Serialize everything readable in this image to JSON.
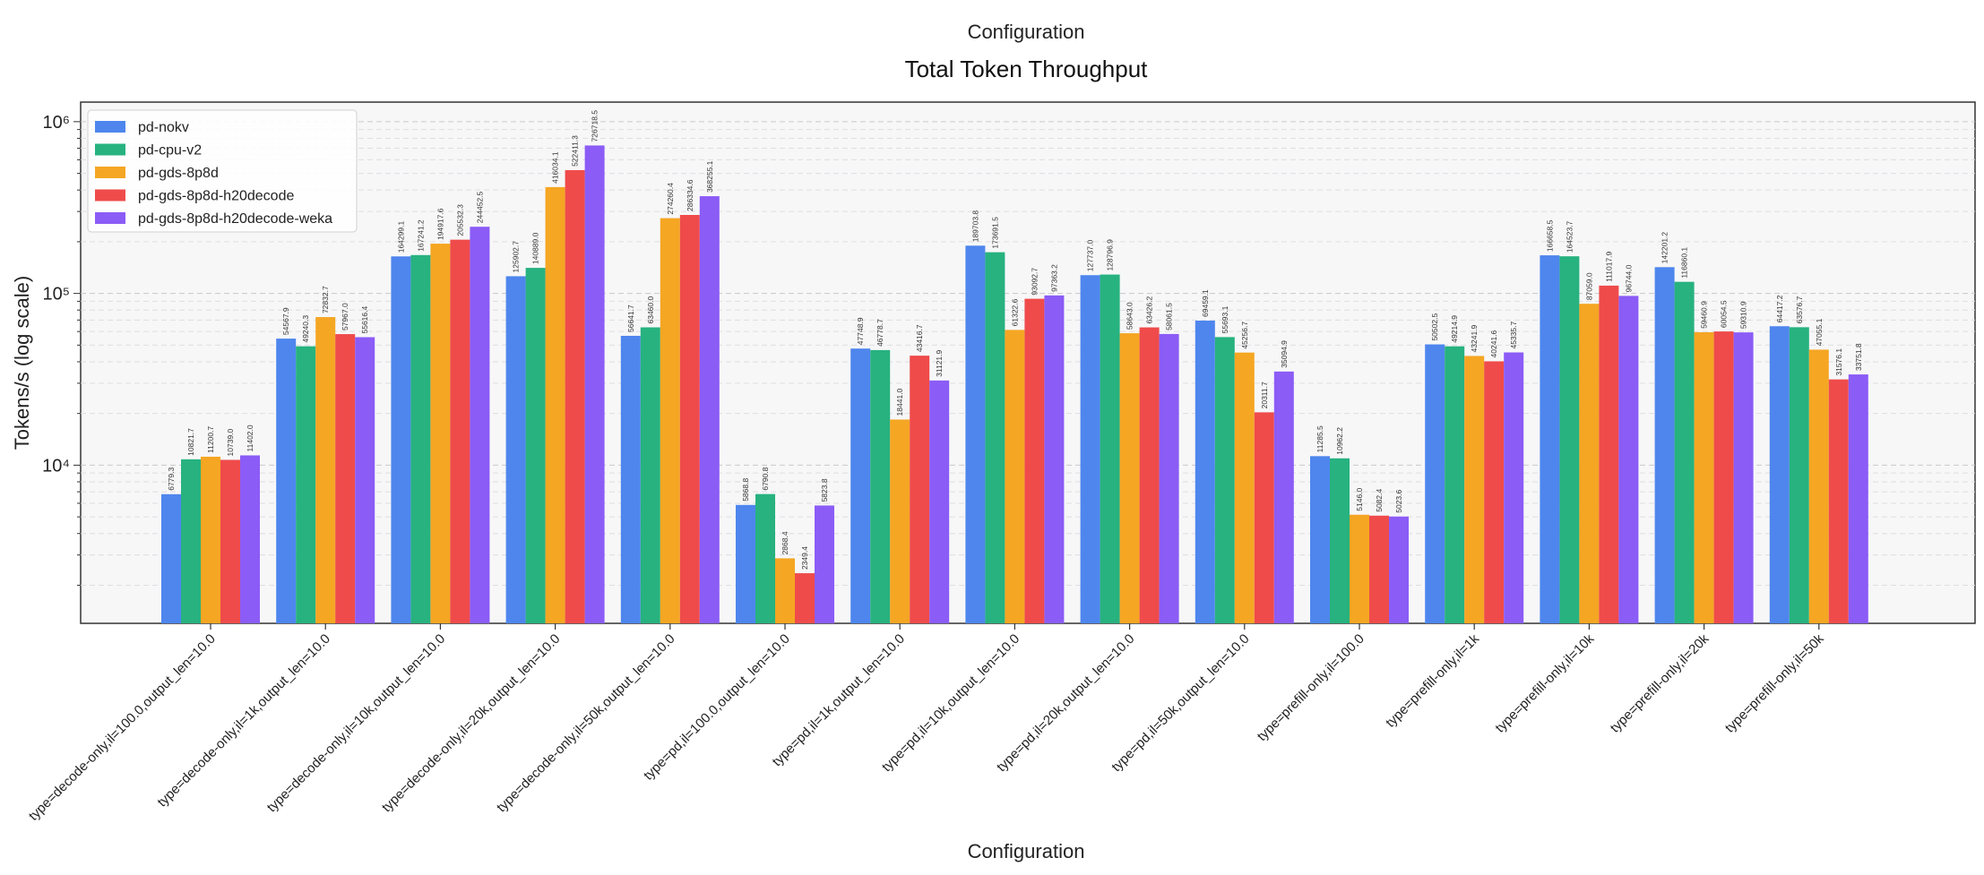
{
  "page": {
    "top_label": "Configuration"
  },
  "chart_data": {
    "type": "bar",
    "title": "Total Token Throughput",
    "xlabel": "Configuration",
    "ylabel": "Tokens/s (log scale)",
    "yscale": "log",
    "ylim": [
      1200,
      1300000
    ],
    "yticks": [
      {
        "value": 10000,
        "label": "10⁴"
      },
      {
        "value": 100000,
        "label": "10⁵"
      },
      {
        "value": 1000000,
        "label": "10⁶"
      }
    ],
    "grid": "horizontal dashed",
    "legend_position": "top-left",
    "categories": [
      "type=decode-only,il=100.0,output_len=10.0",
      "type=decode-only,il=1k,output_len=10.0",
      "type=decode-only,il=10k,output_len=10.0",
      "type=decode-only,il=20k,output_len=10.0",
      "type=decode-only,il=50k,output_len=10.0",
      "type=pd,il=100.0,output_len=10.0",
      "type=pd,il=1k,output_len=10.0",
      "type=pd,il=10k,output_len=10.0",
      "type=pd,il=20k,output_len=10.0",
      "type=pd,il=50k,output_len=10.0",
      "type=prefill-only,il=100.0",
      "type=prefill-only,il=1k",
      "type=prefill-only,il=10k",
      "type=prefill-only,il=20k",
      "type=prefill-only,il=50k"
    ],
    "series": [
      {
        "name": "pd-nokv",
        "color": "#4e86ee",
        "values": [
          6779.3,
          54567.9,
          164299.1,
          125902.7,
          56641.7,
          5868.8,
          47748.9,
          189703.8,
          127737.0,
          69459.1,
          11285.5,
          50502.5,
          166658.5,
          142201.2,
          64417.2
        ]
      },
      {
        "name": "pd-cpu-v2",
        "color": "#27b27f",
        "values": [
          10821.7,
          49240.3,
          167241.2,
          140889.0,
          63460.0,
          6790.8,
          46778.7,
          173691.5,
          128796.9,
          55693.1,
          10962.2,
          49214.9,
          164523.7,
          116860.1,
          63576.7
        ]
      },
      {
        "name": "pd-gds-8p8d",
        "color": "#f5a623",
        "values": [
          11200.7,
          72832.7,
          194917.6,
          416034.1,
          274260.4,
          2868.4,
          18441.0,
          61322.6,
          58643.0,
          45256.7,
          5146.0,
          43241.9,
          87059.0,
          59460.9,
          47055.1
        ]
      },
      {
        "name": "pd-gds-8p8d-h20decode",
        "color": "#ef4b4b",
        "values": [
          10739.0,
          57967.0,
          205532.3,
          522411.3,
          286334.6,
          2349.4,
          43416.7,
          93092.7,
          63426.2,
          20311.7,
          5082.4,
          40241.6,
          111017.9,
          60054.5,
          31576.1
        ]
      },
      {
        "name": "pd-gds-8p8d-h20decode-weka",
        "color": "#8b5cf6",
        "values": [
          11402.0,
          55616.4,
          244452.5,
          726718.5,
          368255.1,
          5823.8,
          31121.9,
          97363.2,
          58061.5,
          35094.9,
          5023.6,
          45335.7,
          96744.0,
          59310.9,
          33751.8
        ]
      }
    ]
  }
}
